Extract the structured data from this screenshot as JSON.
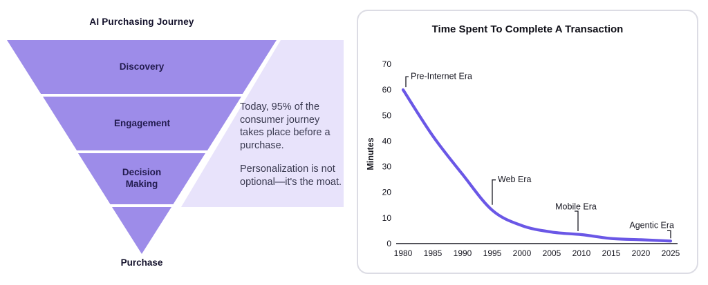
{
  "left_panel": {
    "title": "AI Purchasing Journey",
    "stages": [
      "Discovery",
      "Engagement",
      "Decision Making",
      "Purchase"
    ],
    "note": {
      "para1": "Today, 95% of the consumer journey takes place before a purchase.",
      "para2": "Personalization is not optional—it's the moat."
    },
    "colors": {
      "funnel": "#9d8ce9",
      "note_bg": "#e8e3fb"
    }
  },
  "chart_data": {
    "type": "line",
    "title": "Time Spent To Complete A Transaction",
    "xlabel": "",
    "ylabel": "Minutes",
    "x": [
      1980,
      1985,
      1990,
      1995,
      2000,
      2005,
      2010,
      2015,
      2020,
      2025
    ],
    "values": [
      60,
      42,
      27,
      13,
      7,
      4.5,
      3.5,
      2,
      1.5,
      1
    ],
    "ylim": [
      0,
      70
    ],
    "yticks": [
      0,
      10,
      20,
      30,
      40,
      50,
      60,
      70
    ],
    "line_color": "#6a57e6",
    "grid": false,
    "legend": "none",
    "annotations": [
      {
        "label": "Pre-Internet Era",
        "year": 1980,
        "value": 60
      },
      {
        "label": "Web Era",
        "year": 1995,
        "value": 13
      },
      {
        "label": "Mobile Era",
        "year": 2010,
        "value": 3.5
      },
      {
        "label": "Agentic Era",
        "year": 2025,
        "value": 1
      }
    ]
  }
}
